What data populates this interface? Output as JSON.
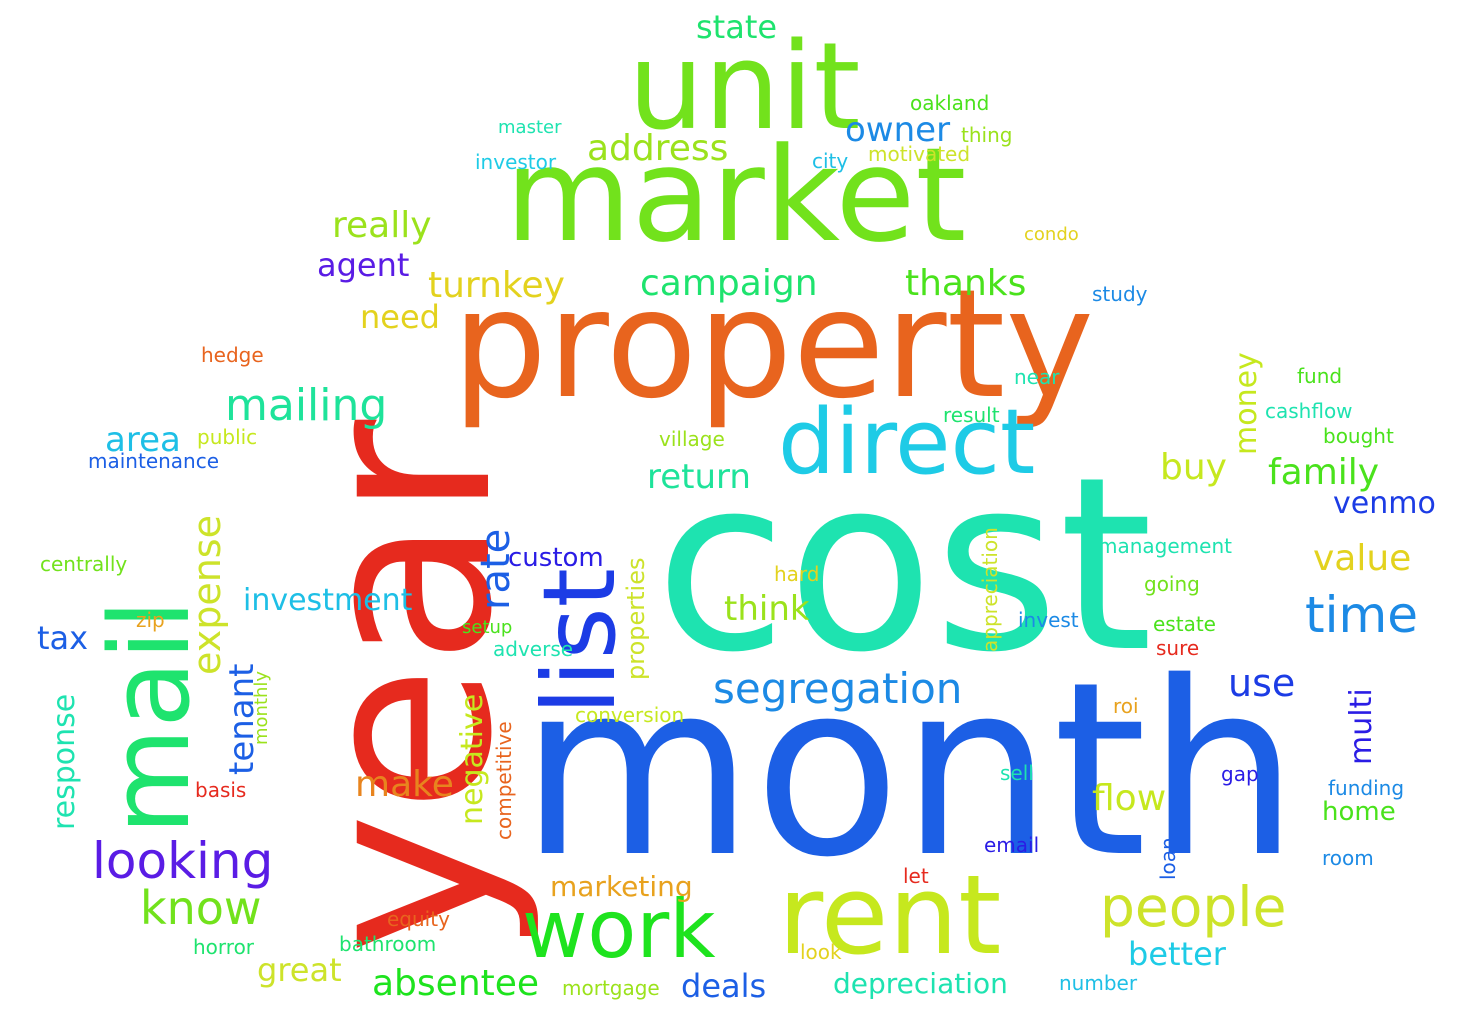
{
  "words": [
    {
      "text": "cost",
      "color": "#1ee3b0"
    },
    {
      "text": "month",
      "color": "#1c5fe5"
    },
    {
      "text": "year",
      "color": "#e62a1e"
    },
    {
      "text": "property",
      "color": "#e8641e"
    },
    {
      "text": "market",
      "color": "#72e21c"
    },
    {
      "text": "unit",
      "color": "#72e21c"
    },
    {
      "text": "list",
      "color": "#1c3ce5"
    },
    {
      "text": "mail",
      "color": "#1ee36e"
    },
    {
      "text": "rent",
      "color": "#c6e81e"
    },
    {
      "text": "direct",
      "color": "#1ecbe6"
    },
    {
      "text": "work",
      "color": "#1ee31e"
    },
    {
      "text": "people",
      "color": "#cde32a"
    },
    {
      "text": "time",
      "color": "#1c8ae5"
    },
    {
      "text": "segregation",
      "color": "#1c8ae5"
    },
    {
      "text": "looking",
      "color": "#5a1ce5"
    },
    {
      "text": "know",
      "color": "#72e21c"
    },
    {
      "text": "mailing",
      "color": "#1ee39a"
    },
    {
      "text": "absentee",
      "color": "#1ee31e"
    },
    {
      "text": "campaign",
      "color": "#1ee36e"
    },
    {
      "text": "thanks",
      "color": "#4ae21c"
    },
    {
      "text": "address",
      "color": "#9be21c"
    },
    {
      "text": "owner",
      "color": "#1c8ae5"
    },
    {
      "text": "really",
      "color": "#9be21c"
    },
    {
      "text": "turnkey",
      "color": "#e3d21e"
    },
    {
      "text": "agent",
      "color": "#5a1ce5"
    },
    {
      "text": "need",
      "color": "#e3d21e"
    },
    {
      "text": "state",
      "color": "#1ee36e"
    },
    {
      "text": "family",
      "color": "#4ae21c"
    },
    {
      "text": "buy",
      "color": "#c6e81e"
    },
    {
      "text": "value",
      "color": "#e3d21e"
    },
    {
      "text": "use",
      "color": "#1c3ce5"
    },
    {
      "text": "venmo",
      "color": "#1c3ce5"
    },
    {
      "text": "return",
      "color": "#1ee39a"
    },
    {
      "text": "think",
      "color": "#9be21c"
    },
    {
      "text": "make",
      "color": "#e8841e"
    },
    {
      "text": "flow",
      "color": "#c6e81e"
    },
    {
      "text": "better",
      "color": "#1ecbe6"
    },
    {
      "text": "deals",
      "color": "#1c5fe5"
    },
    {
      "text": "great",
      "color": "#cde32a"
    },
    {
      "text": "marketing",
      "color": "#e8a21e"
    },
    {
      "text": "depreciation",
      "color": "#1ee3b0"
    },
    {
      "text": "investment",
      "color": "#1ebfe6"
    },
    {
      "text": "custom",
      "color": "#2a1ce5"
    },
    {
      "text": "area",
      "color": "#1ebfe6"
    },
    {
      "text": "tax",
      "color": "#1c5fe5"
    },
    {
      "text": "home",
      "color": "#4ae21c"
    },
    {
      "text": "expense",
      "color": "#cde32a"
    },
    {
      "text": "rate",
      "color": "#1c5fe5"
    },
    {
      "text": "tenant",
      "color": "#1c5fe5"
    },
    {
      "text": "response",
      "color": "#1ee3b0"
    },
    {
      "text": "negative",
      "color": "#c6e81e"
    },
    {
      "text": "money",
      "color": "#c6e81e"
    },
    {
      "text": "multi",
      "color": "#2a1ce5"
    },
    {
      "text": "properties",
      "color": "#cde32a"
    },
    {
      "text": "competitive",
      "color": "#e8641e"
    },
    {
      "text": "appreciation",
      "color": "#cde32a"
    },
    {
      "text": "monthly",
      "color": "#9be21c"
    },
    {
      "text": "loan",
      "color": "#1c5fe5"
    },
    {
      "text": "oakland",
      "color": "#4ae21c"
    },
    {
      "text": "master",
      "color": "#1ee3b0"
    },
    {
      "text": "thing",
      "color": "#9be21c"
    },
    {
      "text": "investor",
      "color": "#1ecbe6"
    },
    {
      "text": "city",
      "color": "#1ebfe6"
    },
    {
      "text": "motivated",
      "color": "#cde32a"
    },
    {
      "text": "condo",
      "color": "#e3d21e"
    },
    {
      "text": "study",
      "color": "#1c8ae5"
    },
    {
      "text": "hedge",
      "color": "#e8641e"
    },
    {
      "text": "near",
      "color": "#1ee3b0"
    },
    {
      "text": "fund",
      "color": "#4ae21c"
    },
    {
      "text": "result",
      "color": "#1ee36e"
    },
    {
      "text": "cashflow",
      "color": "#1ee3b0"
    },
    {
      "text": "public",
      "color": "#c6e81e"
    },
    {
      "text": "village",
      "color": "#9be21c"
    },
    {
      "text": "bought",
      "color": "#4ae21c"
    },
    {
      "text": "maintenance",
      "color": "#1c5fe5"
    },
    {
      "text": "management",
      "color": "#1ee3b0"
    },
    {
      "text": "centrally",
      "color": "#72e21c"
    },
    {
      "text": "hard",
      "color": "#e3d21e"
    },
    {
      "text": "going",
      "color": "#72e21c"
    },
    {
      "text": "zip",
      "color": "#e8a21e"
    },
    {
      "text": "invest",
      "color": "#1c8ae5"
    },
    {
      "text": "estate",
      "color": "#4ae21c"
    },
    {
      "text": "setup",
      "color": "#4ae21c"
    },
    {
      "text": "adverse",
      "color": "#1ee3b0"
    },
    {
      "text": "sure",
      "color": "#e62a1e"
    },
    {
      "text": "conversion",
      "color": "#c6e81e"
    },
    {
      "text": "roi",
      "color": "#e8a21e"
    },
    {
      "text": "basis",
      "color": "#e62a1e"
    },
    {
      "text": "sell",
      "color": "#1ee3b0"
    },
    {
      "text": "gap",
      "color": "#2a1ce5"
    },
    {
      "text": "funding",
      "color": "#1c8ae5"
    },
    {
      "text": "email",
      "color": "#2a1ce5"
    },
    {
      "text": "room",
      "color": "#1c8ae5"
    },
    {
      "text": "let",
      "color": "#e62a1e"
    },
    {
      "text": "equity",
      "color": "#e8641e"
    },
    {
      "text": "horror",
      "color": "#1ee36e"
    },
    {
      "text": "bathroom",
      "color": "#1ee36e"
    },
    {
      "text": "look",
      "color": "#e3d21e"
    },
    {
      "text": "number",
      "color": "#1ebfe6"
    },
    {
      "text": "mortgage",
      "color": "#9be21c"
    }
  ]
}
